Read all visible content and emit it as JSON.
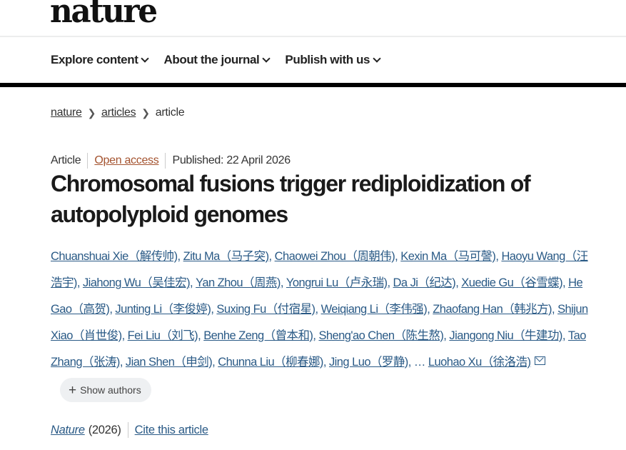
{
  "header": {
    "logo": "nature"
  },
  "nav": [
    {
      "label": "Explore content"
    },
    {
      "label": "About the journal"
    },
    {
      "label": "Publish with us"
    }
  ],
  "breadcrumb": [
    {
      "label": "nature"
    },
    {
      "label": "articles"
    },
    {
      "label": "article"
    }
  ],
  "meta": {
    "type": "Article",
    "access": "Open access",
    "published": "Published: 22 April 2026"
  },
  "title": "Chromosomal fusions trigger rediploidization of autopolyploid genomes",
  "authors": [
    "Chuanshuai Xie（解传帅)",
    "Zitu Ma（马子突)",
    "Chaowei Zhou（周朝伟)",
    "Kexin Ma（马可謦)",
    "Haoyu Wang（汪浩宇)",
    "Jiahong Wu（吴佳宏)",
    "Yan Zhou（周燕)",
    "Yongrui Lu（卢永瑞)",
    "Da Ji（纪达)",
    "Xuedie Gu（谷雪蝶)",
    "He Gao（高贺)",
    "Junting Li（李俊婷)",
    "Suxing Fu（付宿星)",
    "Weiqiang Li（李伟强)",
    "Zhaofang Han（韩兆方)",
    "Shijun Xiao（肖世俊)",
    "Fei Liu（刘飞)",
    "Benhe Zeng（曾本和)",
    "Sheng'ao Chen（陈生熬)",
    "Jiangong Niu（牛建功)",
    "Tao Zhang（张涛)",
    "Jian Shen（申剑)",
    "Chunna Liu（柳春娜)",
    "Jing Luo（罗静)"
  ],
  "ellipsis": "…",
  "corresponding_author": "Luohao Xu（徐洛浩)",
  "show_authors": "Show authors",
  "citation": {
    "journal": "Nature",
    "year": "(2026)",
    "cite_label": "Cite this article"
  }
}
